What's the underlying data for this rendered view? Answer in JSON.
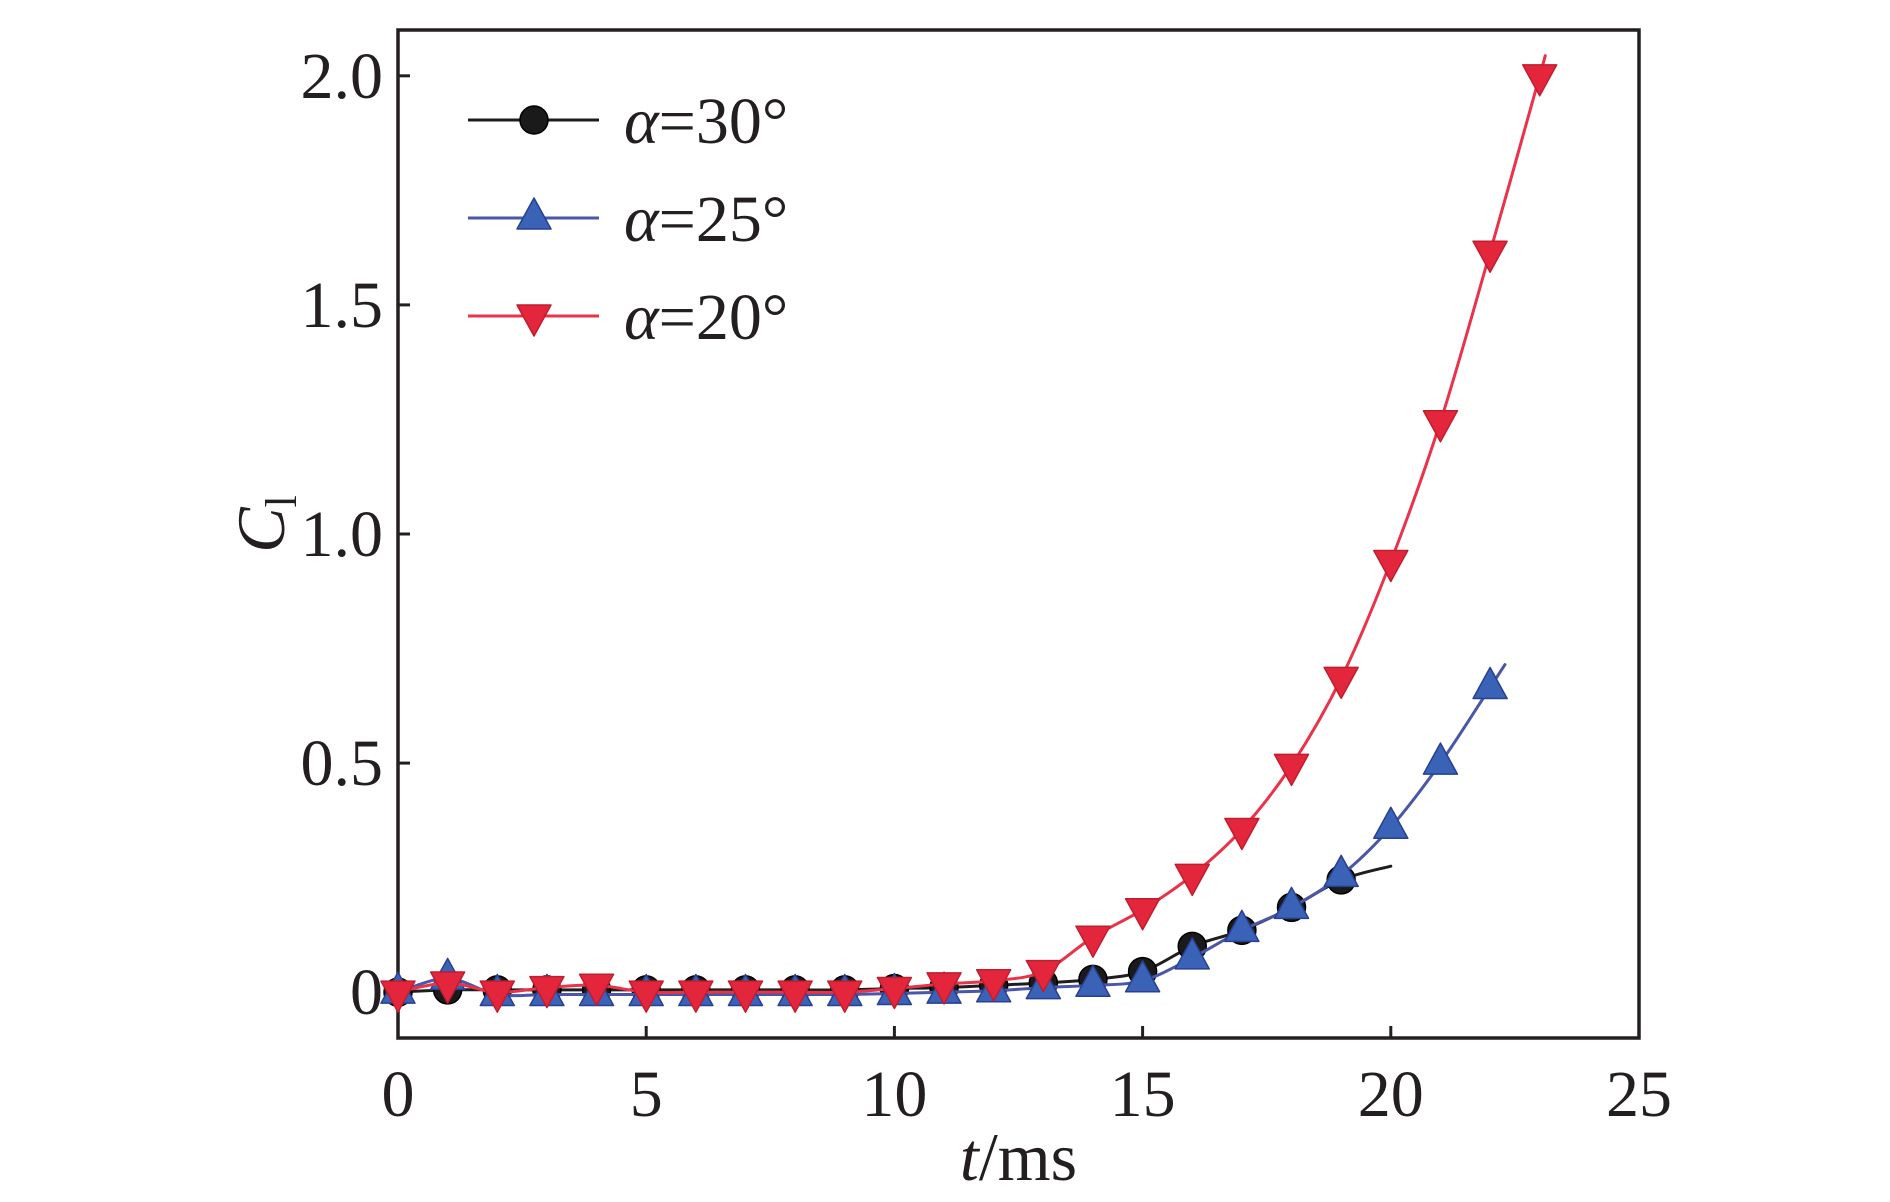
{
  "chart_data": {
    "type": "line",
    "xlabel": "t/ms",
    "ylabel": {
      "text": "C",
      "subscript": "l"
    },
    "xlim": [
      0,
      25
    ],
    "ylim": [
      -0.1,
      2.1
    ],
    "xticks": [
      0,
      5,
      10,
      15,
      20,
      25
    ],
    "xtick_labels": [
      "0",
      "5",
      "10",
      "15",
      "20",
      "25"
    ],
    "yticks": [
      0,
      0.5,
      1.0,
      1.5,
      2.0
    ],
    "ytick_labels": [
      "0",
      "0.5",
      "1.0",
      "1.5",
      "2.0"
    ],
    "grid": false,
    "legend_position": "top-left",
    "series": [
      {
        "name": "α=30°",
        "marker": "circle",
        "line_color": "#1e1e1e",
        "marker_fill": "#1a1a1a",
        "marker_stroke": "#000000",
        "x": [
          0,
          1,
          2,
          3,
          4,
          5,
          6,
          7,
          8,
          9,
          10,
          11,
          12,
          13,
          14,
          15,
          16,
          17,
          18,
          19
        ],
        "y": [
          0.0,
          0.005,
          0.005,
          0.005,
          0.005,
          0.005,
          0.005,
          0.005,
          0.005,
          0.005,
          0.008,
          0.01,
          0.015,
          0.02,
          0.028,
          0.045,
          0.1,
          0.135,
          0.185,
          0.245
        ],
        "line_extends_to": [
          20.0,
          0.275
        ]
      },
      {
        "name": "α=25°",
        "marker": "triangle-up",
        "line_color": "#4a56a6",
        "marker_fill": "#3a62b7",
        "marker_stroke": "#27408f",
        "x": [
          0,
          1,
          2,
          3,
          4,
          5,
          6,
          7,
          8,
          9,
          10,
          11,
          12,
          13,
          14,
          15,
          16,
          17,
          18,
          19,
          20,
          21,
          22
        ],
        "y": [
          0.0,
          0.03,
          -0.005,
          -0.005,
          -0.005,
          -0.005,
          -0.005,
          -0.005,
          -0.005,
          -0.005,
          -0.003,
          0.0,
          0.003,
          0.01,
          0.015,
          0.025,
          0.075,
          0.135,
          0.185,
          0.255,
          0.36,
          0.5,
          0.665
        ],
        "line_extends_to": [
          22.3,
          0.715
        ]
      },
      {
        "name": "α=20°",
        "marker": "triangle-down",
        "line_color": "#e8334a",
        "marker_fill": "#e3263b",
        "marker_stroke": "#c01d2f",
        "x": [
          0,
          1,
          2,
          3,
          4,
          5,
          6,
          7,
          8,
          9,
          10,
          11,
          12,
          13,
          14,
          15,
          16,
          17,
          18,
          19,
          20,
          21,
          22,
          23
        ],
        "y": [
          0.0,
          0.02,
          0.0,
          0.01,
          0.015,
          0.0,
          0.0,
          0.0,
          0.0,
          0.0,
          0.008,
          0.018,
          0.025,
          0.045,
          0.12,
          0.18,
          0.255,
          0.355,
          0.495,
          0.685,
          0.94,
          1.245,
          1.615,
          2.0
        ],
        "line_extends_to": [
          23.1,
          2.04
        ]
      }
    ]
  }
}
